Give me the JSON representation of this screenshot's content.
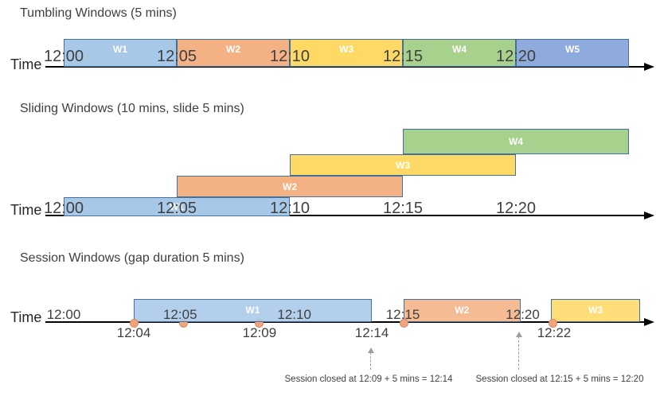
{
  "colors": {
    "window_border": "#41719C",
    "blue_fill": "#A8C8E8",
    "orange_fill": "#F4B183",
    "yellow_fill": "#FFD966",
    "green_fill": "#A9D18E",
    "periwinkle_fill": "#8FAADC",
    "event_dot_fill": "#F2A47F",
    "event_dot_border": "#D98B60",
    "axis_color": "#000000",
    "text_color": "#3F3F3F",
    "window_label_color": "#FFFFFF",
    "annotation_arrow_color": "#9E9E9E"
  },
  "sections": [
    {
      "title": "Tumbling Windows (5 mins)",
      "time_label": "Time",
      "ticks": [
        {
          "label": "12:00",
          "t": 0
        },
        {
          "label": "12:05",
          "t": 5
        },
        {
          "label": "12:10",
          "t": 10
        },
        {
          "label": "12:15",
          "t": 15
        },
        {
          "label": "12:20",
          "t": 20
        }
      ],
      "windows": [
        {
          "name": "W1",
          "start": 0,
          "end": 5,
          "color": "blue_fill"
        },
        {
          "name": "W2",
          "start": 5,
          "end": 10,
          "color": "orange_fill"
        },
        {
          "name": "W3",
          "start": 10,
          "end": 15,
          "color": "yellow_fill"
        },
        {
          "name": "W4",
          "start": 15,
          "end": 20,
          "color": "green_fill"
        },
        {
          "name": "W5",
          "start": 20,
          "end": 25,
          "color": "periwinkle_fill"
        }
      ]
    },
    {
      "title": "Sliding Windows (10 mins, slide 5 mins)",
      "time_label": "Time",
      "ticks": [
        {
          "label": "12:00",
          "t": 0
        },
        {
          "label": "12:05",
          "t": 5
        },
        {
          "label": "12:10",
          "t": 10
        },
        {
          "label": "12:15",
          "t": 15
        },
        {
          "label": "12:20",
          "t": 20
        }
      ],
      "windows": [
        {
          "name": "W1",
          "start": 0,
          "end": 10,
          "color": "blue_fill"
        },
        {
          "name": "W2",
          "start": 5,
          "end": 15,
          "color": "orange_fill"
        },
        {
          "name": "W3",
          "start": 10,
          "end": 20,
          "color": "yellow_fill"
        },
        {
          "name": "W4",
          "start": 15,
          "end": 25,
          "color": "green_fill"
        }
      ]
    },
    {
      "title": "Session Windows (gap duration 5 mins)",
      "time_label": "Time",
      "ticks": [
        {
          "label": "12:00",
          "t": 0
        },
        {
          "label": "12:05",
          "t": 5.15
        },
        {
          "label": "12:10",
          "t": 10.2
        },
        {
          "label": "12:15",
          "t": 15.0
        },
        {
          "label": "12:20",
          "t": 20.3
        }
      ],
      "windows": [
        {
          "name": "W1",
          "start": 3.1,
          "end": 13.62,
          "color": "blue_fill"
        },
        {
          "name": "W2",
          "start": 15.03,
          "end": 20.2,
          "color": "orange_fill"
        },
        {
          "name": "W3",
          "start": 21.55,
          "end": 25.5,
          "color": "yellow_fill"
        }
      ],
      "events": [
        {
          "t": 3.1
        },
        {
          "t": 5.3
        },
        {
          "t": 8.66
        },
        {
          "t": 15.07
        },
        {
          "t": 21.62
        }
      ],
      "event_labels": [
        {
          "label": "12:04",
          "t": 3.1
        },
        {
          "label": "12:09",
          "t": 8.66
        },
        {
          "label": "12:14",
          "t": 13.63
        },
        {
          "label": "12:22",
          "t": 21.69
        }
      ],
      "annotations": [
        {
          "text": "Session closed at 12:09 + 5 mins = 12:14"
        },
        {
          "text": "Session closed at 12:15 + 5 mins = 12:20"
        }
      ]
    }
  ]
}
